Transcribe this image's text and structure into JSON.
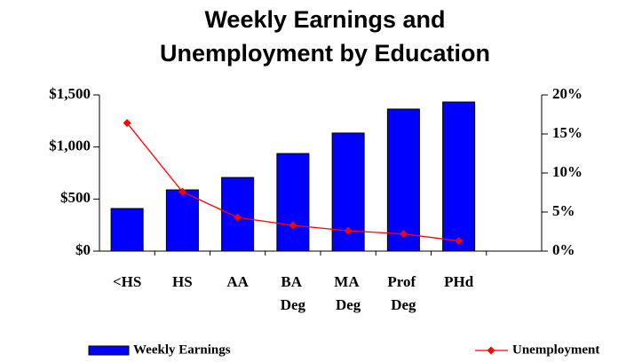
{
  "chart_data": {
    "type": "bar_line",
    "title": [
      "Weekly Earnings and",
      "Unemployment by Education"
    ],
    "categories": [
      "<HS",
      "HS",
      "AA",
      "BA Deg",
      "MA Deg",
      "Prof Deg",
      "PHd",
      null
    ],
    "series": [
      {
        "name": "Weekly Earnings",
        "type": "bar",
        "color": "#0000ff",
        "values": [
          409,
          588,
          707,
          937,
          1134,
          1364,
          1432,
          null
        ]
      },
      {
        "name": "Unemployment",
        "type": "line",
        "axis": "y2",
        "color": "#ff0000",
        "values": [
          16.4,
          7.6,
          4.3,
          3.3,
          2.6,
          2.2,
          1.3,
          null
        ]
      }
    ],
    "ylim": [
      0,
      1500
    ],
    "yticks": [
      {
        "value": 0,
        "label": "$0"
      },
      {
        "value": 500,
        "label": "$500"
      },
      {
        "value": 1000,
        "label": "$1,000"
      },
      {
        "value": 1500,
        "label": "$1,500"
      }
    ],
    "y2lim": [
      0,
      20
    ],
    "y2ticks": [
      {
        "value": 0,
        "label": "0%"
      },
      {
        "value": 5,
        "label": "5%"
      },
      {
        "value": 10,
        "label": "10%"
      },
      {
        "value": 15,
        "label": "15%"
      },
      {
        "value": 20,
        "label": "20%"
      }
    ],
    "legend": "bottom",
    "grid": false
  }
}
